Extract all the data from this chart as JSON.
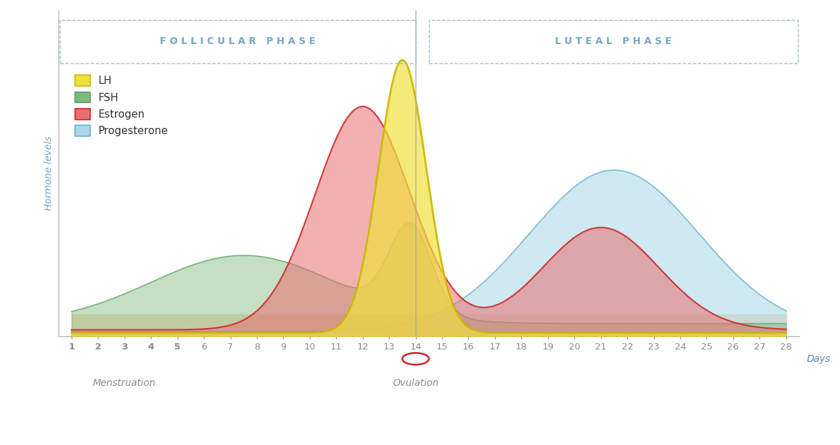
{
  "days": [
    1,
    2,
    3,
    4,
    5,
    6,
    7,
    8,
    9,
    10,
    11,
    12,
    13,
    14,
    15,
    16,
    17,
    18,
    19,
    20,
    21,
    22,
    23,
    24,
    25,
    26,
    27,
    28
  ],
  "follicular_label": "FOLLICULAR PHASE",
  "luteal_label": "LUTEAL PHASE",
  "ovulation_day": 14,
  "menstruation_days": [
    1,
    2,
    3,
    4,
    5
  ],
  "xlabel": "Days",
  "ylabel": "Hormone levels",
  "ovulation_text": "Ovulation",
  "menstruation_text": "Menstruation",
  "legend_items": [
    "LH",
    "FSH",
    "Estrogen",
    "Progesterone"
  ],
  "lh_color": "#f0e040",
  "lh_edge_color": "#c8b800",
  "fsh_color": "#7dba7d",
  "fsh_edge_color": "#5a9e5a",
  "estrogen_color": "#e87070",
  "estrogen_edge_color": "#cc2222",
  "progesterone_color": "#a8d8e8",
  "progesterone_edge_color": "#6ab0cc",
  "background_fill_color": "#f5d5b8",
  "phase_label_color": "#7aa8c0",
  "axis_color": "#888888",
  "menstruation_days_color": "#cc3333",
  "normal_days_color": "#555555",
  "days_color": "#5588aa",
  "ovulation_circle_color": "#cc2222",
  "follicular_label_spaced": "F O L L I C U L A R   P H A S E",
  "luteal_label_spaced": "L U T E A L   P H A S E"
}
